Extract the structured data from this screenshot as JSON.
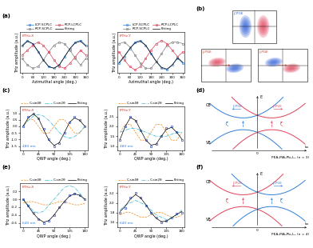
{
  "chart_data": [
    {
      "type": "line",
      "panel_label": "(a)",
      "xlabel": "Azimuthal angle (deg.)",
      "ylabel": "THz amplitude (a.u.)",
      "x": [
        0,
        30,
        60,
        90,
        120,
        150,
        180,
        210,
        240,
        270,
        300,
        330,
        360
      ],
      "xlim": [
        -10,
        370
      ],
      "xticks": [
        0,
        60,
        120,
        180,
        240,
        300,
        360
      ],
      "ylim": [
        -1.1,
        1.4
      ],
      "tick_labels": "x",
      "legend": "lower center",
      "annotations": [
        "ETHz-X"
      ],
      "series": [
        {
          "name": "LCP-SCPLC",
          "color": "#2f7fd8",
          "marker": "o",
          "line_style": "solid",
          "values": [
            0.6,
            0.9,
            0.7,
            0.2,
            -0.3,
            -0.7,
            -0.8,
            -0.6,
            -0.1,
            0.4,
            0.8,
            0.9,
            0.6
          ]
        },
        {
          "name": "RCP-SCPLC",
          "color": "#808080",
          "marker": "o",
          "line_style": "solid",
          "values": [
            -0.2,
            -0.6,
            -0.8,
            -0.7,
            -0.3,
            0.2,
            0.6,
            0.8,
            0.7,
            0.3,
            -0.2,
            -0.6,
            -0.2
          ]
        },
        {
          "name": "RCP-LCPLC",
          "color": "#e0405a",
          "marker": "o",
          "line_style": "solid",
          "values": [
            0.0,
            0.3,
            0.6,
            0.8,
            0.6,
            0.2,
            -0.3,
            -0.7,
            -0.8,
            -0.5,
            -0.1,
            0.3,
            0.0
          ]
        },
        {
          "name": "Fitting",
          "color": "#000000",
          "line_style": "solid",
          "values": [
            0.55,
            0.85,
            0.7,
            0.25,
            -0.3,
            -0.7,
            -0.8,
            -0.6,
            -0.1,
            0.4,
            0.75,
            0.85,
            0.55
          ]
        }
      ]
    },
    {
      "type": "line",
      "xlabel": "Azimuthal angle (deg.)",
      "ylabel": "THz amplitude (a.u.)",
      "x": [
        0,
        30,
        60,
        90,
        120,
        150,
        180,
        210,
        240,
        270,
        300,
        330,
        360
      ],
      "xlim": [
        -10,
        370
      ],
      "xticks": [
        0,
        60,
        120,
        180,
        240,
        300,
        360
      ],
      "ylim": [
        -1.1,
        1.4
      ],
      "tick_labels": "x",
      "legend": "lower center",
      "annotations": [
        "ETHz-Y"
      ],
      "series": [
        {
          "name": "LCP-SCPLC",
          "color": "#2f7fd8",
          "marker": "o",
          "line_style": "solid",
          "values": [
            -0.5,
            -0.1,
            0.4,
            0.8,
            0.9,
            0.6,
            0.1,
            -0.4,
            -0.8,
            -0.9,
            -0.6,
            -0.2,
            -0.5
          ]
        },
        {
          "name": "RCP-SCPLC",
          "color": "#808080",
          "marker": "o",
          "line_style": "solid",
          "values": [
            0.7,
            0.8,
            0.5,
            0.0,
            -0.5,
            -0.8,
            -0.8,
            -0.4,
            0.1,
            0.6,
            0.8,
            0.8,
            0.7
          ]
        },
        {
          "name": "RCP-LCPLC",
          "color": "#e0405a",
          "marker": "o",
          "line_style": "solid",
          "values": [
            0.2,
            -0.3,
            -0.7,
            -0.9,
            -0.7,
            -0.2,
            0.3,
            0.7,
            0.9,
            0.7,
            0.3,
            -0.1,
            0.2
          ]
        },
        {
          "name": "Fitting",
          "color": "#000000",
          "line_style": "solid",
          "values": [
            -0.45,
            -0.05,
            0.4,
            0.75,
            0.85,
            0.6,
            0.1,
            -0.4,
            -0.75,
            -0.85,
            -0.6,
            -0.15,
            -0.45
          ]
        }
      ]
    },
    {
      "type": "line",
      "panel_label": "(c)",
      "xlabel": "QWP angle (deg.)",
      "ylabel": "THz amplitude (a.u.)",
      "x": [
        0,
        15,
        30,
        45,
        60,
        75,
        90,
        105,
        120,
        135,
        150,
        165,
        180
      ],
      "xlim": [
        -8,
        188
      ],
      "xticks": [
        0,
        45,
        90,
        135,
        180
      ],
      "ylim": [
        -1.8,
        1.5
      ],
      "yticks": [
        -1.5,
        -1.0,
        -0.5,
        0.0,
        0.5,
        1.0
      ],
      "legend": "lower center",
      "annotations": [
        "ETHz-X",
        "480 nm"
      ],
      "series": [
        {
          "color": "#1f3fbf",
          "marker": "o",
          "line_style": "none",
          "values": [
            0.0,
            0.7,
            1.0,
            0.6,
            -0.2,
            -1.0,
            -1.5,
            -1.3,
            -0.5,
            0.3,
            0.7,
            0.5,
            0.0
          ]
        },
        {
          "name": "C₁sin4θ",
          "color": "#f08c1e",
          "line_style": "dashed",
          "values": [
            0.0,
            0.52,
            0.52,
            0.0,
            -0.52,
            -0.52,
            0.0,
            0.52,
            0.52,
            0.0,
            -0.52,
            -0.52,
            0.0
          ]
        },
        {
          "name": "C₂sin2θ",
          "color": "#27b5d8",
          "line_style": "dashdot",
          "values": [
            0.0,
            0.45,
            0.78,
            0.9,
            0.78,
            0.45,
            0.0,
            -0.45,
            -0.78,
            -0.9,
            -0.78,
            -0.45,
            0.0
          ]
        },
        {
          "name": "Fitting",
          "color": "#000000",
          "line_style": "solid",
          "values": [
            0.0,
            0.65,
            0.95,
            0.6,
            -0.25,
            -1.05,
            -1.45,
            -1.25,
            -0.5,
            0.3,
            0.65,
            0.45,
            0.0
          ]
        }
      ]
    },
    {
      "type": "line",
      "xlabel": "QWP angle (deg.)",
      "ylabel": "THz amplitude (a.u.)",
      "x": [
        0,
        15,
        30,
        45,
        60,
        75,
        90,
        105,
        120,
        135,
        150,
        165,
        180
      ],
      "xlim": [
        -8,
        188
      ],
      "xticks": [
        0,
        45,
        90,
        135,
        180
      ],
      "ylim": [
        0.8,
        3.0
      ],
      "yticks": [
        1.0,
        1.5,
        2.0,
        2.5
      ],
      "legend": "lower center",
      "annotations": [
        "ETHz-Y",
        "480 nm"
      ],
      "series": [
        {
          "color": "#1f3fbf",
          "marker": "o",
          "line_style": "none",
          "values": [
            1.3,
            2.0,
            2.5,
            2.3,
            1.8,
            1.3,
            1.0,
            1.1,
            1.5,
            1.9,
            2.0,
            1.7,
            1.3
          ]
        },
        {
          "name": "C₁sin4θ",
          "color": "#f08c1e",
          "line_style": "dashed",
          "values": [
            1.7,
            2.1,
            2.1,
            1.7,
            1.3,
            1.3,
            1.7,
            2.1,
            2.1,
            1.7,
            1.3,
            1.3,
            1.7
          ]
        },
        {
          "name": "C₂sin2θ",
          "color": "#27b5d8",
          "line_style": "dashdot",
          "values": [
            1.7,
            1.8,
            1.9,
            1.9,
            1.8,
            1.7,
            1.6,
            1.5,
            1.5,
            1.5,
            1.6,
            1.7,
            1.7
          ]
        },
        {
          "name": "Fitting",
          "color": "#000000",
          "line_style": "solid",
          "values": [
            1.35,
            2.0,
            2.45,
            2.3,
            1.8,
            1.3,
            1.05,
            1.1,
            1.5,
            1.85,
            1.95,
            1.7,
            1.35
          ]
        }
      ]
    },
    {
      "type": "line",
      "panel_label": "(e)",
      "xlabel": "QWP angle (deg.)",
      "ylabel": "THz amplitude (a.u.)",
      "x": [
        0,
        15,
        30,
        45,
        60,
        75,
        90,
        105,
        120,
        135,
        150,
        165,
        180
      ],
      "xlim": [
        -8,
        188
      ],
      "xticks": [
        0,
        45,
        90,
        135,
        180
      ],
      "ylim": [
        -0.7,
        0.4
      ],
      "yticks": [
        -0.6,
        -0.4,
        -0.2,
        0.0,
        0.2
      ],
      "legend": "lower center",
      "annotations": [
        "ETHz-X",
        "640 nm"
      ],
      "series": [
        {
          "color": "#1f3fbf",
          "marker": "o",
          "line_style": "none",
          "values": [
            0.0,
            -0.15,
            -0.35,
            -0.5,
            -0.6,
            -0.55,
            -0.4,
            -0.2,
            -0.05,
            0.1,
            0.15,
            0.1,
            0.0
          ]
        },
        {
          "name": "C₁sin4θ",
          "color": "#f08c1e",
          "line_style": "dashed",
          "values": [
            -0.1,
            -0.06,
            -0.06,
            -0.1,
            -0.14,
            -0.14,
            -0.1,
            -0.06,
            -0.06,
            -0.1,
            -0.14,
            -0.14,
            -0.1
          ]
        },
        {
          "name": "C₂sin2θ",
          "color": "#27b5d8",
          "line_style": "dashdot",
          "values": [
            0.0,
            -0.15,
            -0.3,
            -0.35,
            -0.3,
            -0.15,
            0.0,
            0.15,
            0.3,
            0.35,
            0.3,
            0.15,
            0.0
          ]
        },
        {
          "name": "Fitting",
          "color": "#000000",
          "line_style": "solid",
          "values": [
            0.0,
            -0.17,
            -0.36,
            -0.5,
            -0.58,
            -0.54,
            -0.4,
            -0.22,
            -0.06,
            0.08,
            0.14,
            0.1,
            0.0
          ]
        }
      ]
    },
    {
      "type": "line",
      "xlabel": "QWP angle (deg.)",
      "ylabel": "THz amplitude (a.u.)",
      "x": [
        0,
        15,
        30,
        45,
        60,
        75,
        90,
        105,
        120,
        135,
        150,
        165,
        180
      ],
      "xlim": [
        -8,
        188
      ],
      "xticks": [
        0,
        45,
        90,
        135,
        180
      ],
      "ylim": [
        1.5,
        2.4
      ],
      "yticks": [
        1.6,
        1.8,
        2.0,
        2.2
      ],
      "legend": "lower center",
      "annotations": [
        "ETHz-Y",
        "640 nm"
      ],
      "series": [
        {
          "color": "#1f3fbf",
          "marker": "o",
          "line_style": "none",
          "values": [
            1.8,
            1.9,
            2.1,
            2.2,
            2.1,
            1.95,
            1.8,
            1.7,
            1.6,
            1.62,
            1.7,
            1.78,
            1.8
          ]
        },
        {
          "name": "C₁sin4θ",
          "color": "#f08c1e",
          "line_style": "dashed",
          "values": [
            1.75,
            1.8,
            1.8,
            1.75,
            1.7,
            1.7,
            1.75,
            1.8,
            1.8,
            1.75,
            1.7,
            1.7,
            1.75
          ]
        },
        {
          "name": "C₂sin2θ",
          "color": "#27b5d8",
          "line_style": "dashdot",
          "values": [
            1.85,
            1.95,
            2.0,
            2.05,
            2.0,
            1.95,
            1.85,
            1.75,
            1.7,
            1.65,
            1.7,
            1.75,
            1.85
          ]
        },
        {
          "name": "Fitting",
          "color": "#000000",
          "line_style": "solid",
          "values": [
            1.82,
            1.93,
            2.08,
            2.17,
            2.1,
            1.96,
            1.8,
            1.68,
            1.61,
            1.62,
            1.69,
            1.76,
            1.82
          ]
        }
      ]
    }
  ],
  "diagrams": {
    "b": {
      "panel_label": "(b)",
      "labels": [
        "jCPGE",
        "jLPGE",
        "jLPGE"
      ]
    },
    "d": {
      "panel_label": "(d)",
      "cb": "CB",
      "vb": "VB",
      "energy": "E",
      "momentum": "kx",
      "origin": "0",
      "current": "jCPGE",
      "compound": "PEA₂MA₂Pb₃I₁₀ (n = 3)"
    },
    "f": {
      "panel_label": "(f)",
      "cb": "CB",
      "vb": "VB",
      "energy": "E",
      "momentum": "kx",
      "origin": "0",
      "current": "jCPGE",
      "compound": "PEA₂MA₃Pb₄I₁₃ (n = 4)"
    }
  }
}
